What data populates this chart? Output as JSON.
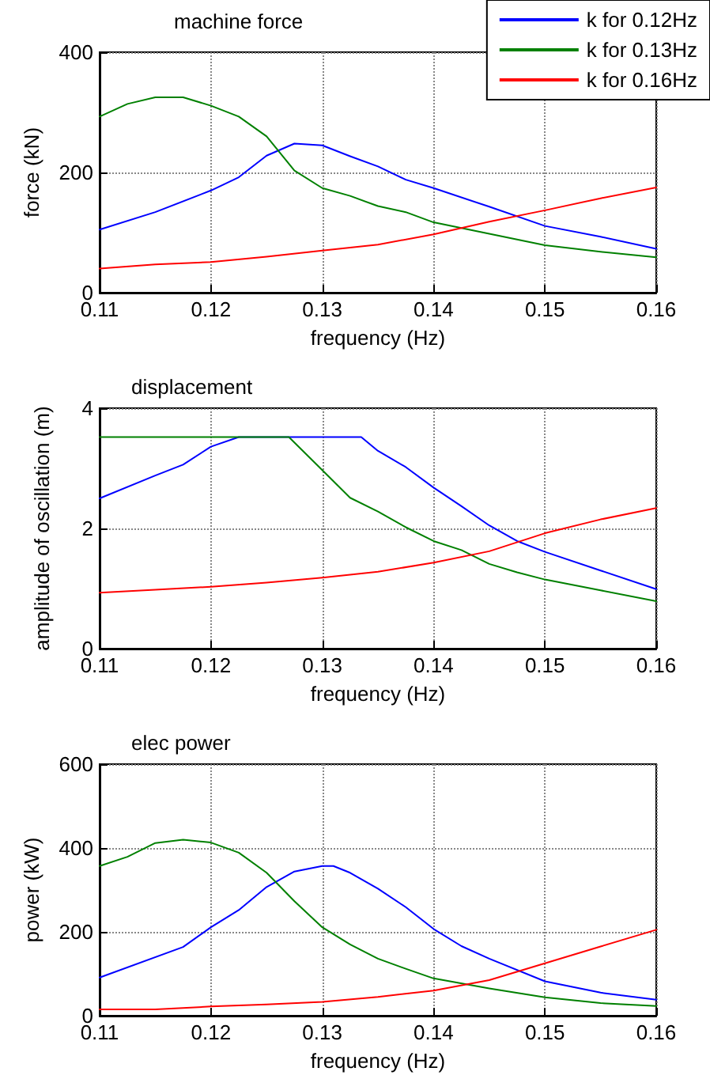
{
  "chart_data": [
    {
      "type": "line",
      "title": "machine force",
      "xlabel": "frequency (Hz)",
      "ylabel": "force (kN)",
      "xlim": [
        0.11,
        0.16
      ],
      "xticks": [
        0.11,
        0.12,
        0.13,
        0.14,
        0.15,
        0.16
      ],
      "ylim": [
        0,
        400
      ],
      "yticks": [
        0,
        200,
        400
      ],
      "grid": true,
      "legend": "top right",
      "marker": "none",
      "line_style": "solid",
      "series": [
        {
          "name": "k for 0.12Hz",
          "color": "#0000ff",
          "x": [
            0.11,
            0.115,
            0.12,
            0.1225,
            0.125,
            0.1275,
            0.13,
            0.1325,
            0.135,
            0.1375,
            0.14,
            0.145,
            0.15,
            0.155,
            0.16
          ],
          "values": [
            105,
            134,
            170,
            192,
            228,
            248,
            245,
            227,
            210,
            188,
            174,
            143,
            111,
            93,
            73
          ]
        },
        {
          "name": "k for 0.13Hz",
          "color": "#008000",
          "x": [
            0.11,
            0.1125,
            0.115,
            0.1175,
            0.12,
            0.1225,
            0.125,
            0.1275,
            0.13,
            0.1325,
            0.135,
            0.1375,
            0.14,
            0.145,
            0.15,
            0.155,
            0.16
          ],
          "values": [
            293,
            314,
            325,
            325,
            311,
            293,
            260,
            203,
            174,
            161,
            144,
            134,
            117,
            98,
            79,
            68,
            59
          ]
        },
        {
          "name": "k for 0.16Hz",
          "color": "#ff0000",
          "x": [
            0.11,
            0.115,
            0.12,
            0.125,
            0.13,
            0.135,
            0.14,
            0.145,
            0.15,
            0.155,
            0.16
          ],
          "values": [
            40,
            47,
            51,
            60,
            70,
            80,
            97,
            118,
            137,
            157,
            175
          ]
        }
      ]
    },
    {
      "type": "line",
      "title": "displacement",
      "xlabel": "frequency (Hz)",
      "ylabel": "amplitude of oscillation (m)",
      "xlim": [
        0.11,
        0.16
      ],
      "xticks": [
        0.11,
        0.12,
        0.13,
        0.14,
        0.15,
        0.16
      ],
      "ylim": [
        0,
        4
      ],
      "yticks": [
        0,
        2,
        4
      ],
      "grid": true,
      "marker": "none",
      "line_style": "solid",
      "series": [
        {
          "color": "#0000ff",
          "x": [
            0.11,
            0.115,
            0.1175,
            0.12,
            0.1225,
            0.1335,
            0.135,
            0.1375,
            0.14,
            0.1425,
            0.145,
            0.1475,
            0.15,
            0.155,
            0.16
          ],
          "values": [
            2.5,
            2.88,
            3.06,
            3.36,
            3.52,
            3.52,
            3.29,
            3.02,
            2.68,
            2.37,
            2.05,
            1.79,
            1.61,
            1.3,
            0.99
          ]
        },
        {
          "color": "#008000",
          "x": [
            0.11,
            0.127,
            0.13,
            0.1325,
            0.135,
            0.1375,
            0.14,
            0.1425,
            0.145,
            0.1475,
            0.15,
            0.155,
            0.16
          ],
          "values": [
            3.52,
            3.52,
            2.97,
            2.51,
            2.28,
            2.02,
            1.79,
            1.64,
            1.41,
            1.27,
            1.15,
            0.97,
            0.79
          ]
        },
        {
          "color": "#ff0000",
          "x": [
            0.11,
            0.115,
            0.12,
            0.125,
            0.13,
            0.135,
            0.14,
            0.145,
            0.15,
            0.155,
            0.16
          ],
          "values": [
            0.93,
            0.98,
            1.03,
            1.1,
            1.18,
            1.28,
            1.43,
            1.62,
            1.92,
            2.15,
            2.34
          ]
        }
      ]
    },
    {
      "type": "line",
      "title": "elec power",
      "xlabel": "frequency (Hz)",
      "ylabel": "power (kW)",
      "xlim": [
        0.11,
        0.16
      ],
      "xticks": [
        0.11,
        0.12,
        0.13,
        0.14,
        0.15,
        0.16
      ],
      "ylim": [
        0,
        600
      ],
      "yticks": [
        0,
        200,
        400,
        600
      ],
      "grid": true,
      "marker": "none",
      "line_style": "solid",
      "series": [
        {
          "color": "#0000ff",
          "x": [
            0.11,
            0.1175,
            0.12,
            0.1225,
            0.125,
            0.1275,
            0.13,
            0.131,
            0.1325,
            0.135,
            0.1375,
            0.14,
            0.1425,
            0.145,
            0.15,
            0.155,
            0.16
          ],
          "values": [
            91,
            164,
            211,
            252,
            307,
            344,
            357,
            357,
            341,
            303,
            259,
            207,
            166,
            136,
            82,
            55,
            38
          ]
        },
        {
          "color": "#008000",
          "x": [
            0.11,
            0.1125,
            0.115,
            0.1175,
            0.12,
            0.1225,
            0.125,
            0.1275,
            0.13,
            0.1325,
            0.135,
            0.1375,
            0.14,
            0.145,
            0.15,
            0.155,
            0.16
          ],
          "values": [
            357,
            379,
            412,
            420,
            413,
            389,
            341,
            273,
            211,
            170,
            136,
            112,
            89,
            65,
            44,
            30,
            23
          ]
        },
        {
          "color": "#ff0000",
          "x": [
            0.11,
            0.115,
            0.12,
            0.125,
            0.13,
            0.135,
            0.14,
            0.145,
            0.15,
            0.155,
            0.16
          ],
          "values": [
            15,
            15,
            22,
            27,
            33,
            45,
            60,
            85,
            125,
            165,
            205
          ]
        }
      ]
    }
  ]
}
